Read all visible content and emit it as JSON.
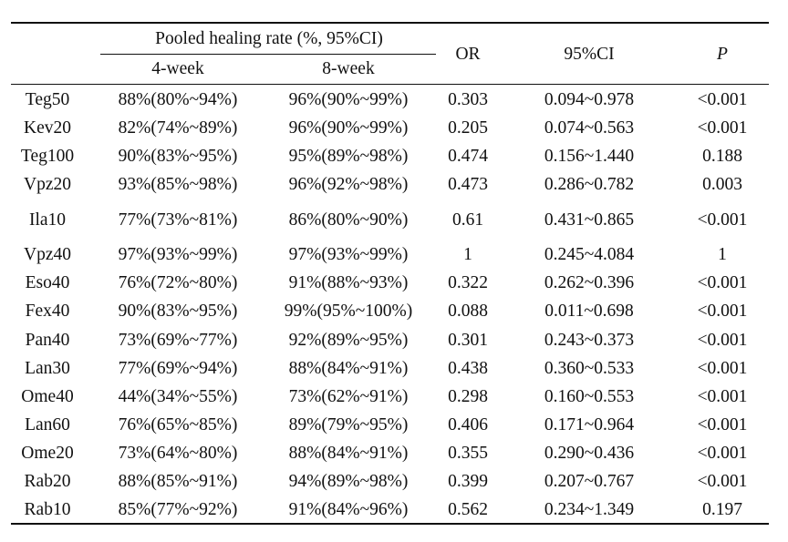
{
  "header": {
    "group_label": "Pooled healing rate (%, 95%CI)",
    "sub_4week": "4-week",
    "sub_8week": "8-week",
    "or_label": "OR",
    "ci_label": "95%CI",
    "p_label": "P"
  },
  "rows": [
    {
      "drug": "Teg50",
      "w4": "88%(80%~94%)",
      "w8": "96%(90%~99%)",
      "or": "0.303",
      "ci": "0.094~0.978",
      "p": "<0.001"
    },
    {
      "drug": "Kev20",
      "w4": "82%(74%~89%)",
      "w8": "96%(90%~99%)",
      "or": "0.205",
      "ci": "0.074~0.563",
      "p": "<0.001"
    },
    {
      "drug": "Teg100",
      "w4": "90%(83%~95%)",
      "w8": "95%(89%~98%)",
      "or": "0.474",
      "ci": "0.156~1.440",
      "p": "0.188"
    },
    {
      "drug": "Vpz20",
      "w4": "93%(85%~98%)",
      "w8": "96%(92%~98%)",
      "or": "0.473",
      "ci": "0.286~0.782",
      "p": "0.003"
    },
    {
      "drug": "Ila10",
      "w4": "77%(73%~81%)",
      "w8": "86%(80%~90%)",
      "or": "0.61",
      "ci": "0.431~0.865",
      "p": "<0.001"
    },
    {
      "drug": "Vpz40",
      "w4": "97%(93%~99%)",
      "w8": "97%(93%~99%)",
      "or": "1",
      "ci": "0.245~4.084",
      "p": "1"
    },
    {
      "drug": "Eso40",
      "w4": "76%(72%~80%)",
      "w8": "91%(88%~93%)",
      "or": "0.322",
      "ci": "0.262~0.396",
      "p": "<0.001"
    },
    {
      "drug": "Fex40",
      "w4": "90%(83%~95%)",
      "w8": "99%(95%~100%)",
      "or": "0.088",
      "ci": "0.011~0.698",
      "p": "<0.001"
    },
    {
      "drug": "Pan40",
      "w4": "73%(69%~77%)",
      "w8": "92%(89%~95%)",
      "or": "0.301",
      "ci": "0.243~0.373",
      "p": "<0.001"
    },
    {
      "drug": "Lan30",
      "w4": "77%(69%~94%)",
      "w8": "88%(84%~91%)",
      "or": "0.438",
      "ci": "0.360~0.533",
      "p": "<0.001"
    },
    {
      "drug": "Ome40",
      "w4": "44%(34%~55%)",
      "w8": "73%(62%~91%)",
      "or": "0.298",
      "ci": "0.160~0.553",
      "p": "<0.001"
    },
    {
      "drug": "Lan60",
      "w4": "76%(65%~85%)",
      "w8": "89%(79%~95%)",
      "or": "0.406",
      "ci": "0.171~0.964",
      "p": "<0.001"
    },
    {
      "drug": "Ome20",
      "w4": "73%(64%~80%)",
      "w8": "88%(84%~91%)",
      "or": "0.355",
      "ci": "0.290~0.436",
      "p": "<0.001"
    },
    {
      "drug": "Rab20",
      "w4": "88%(85%~91%)",
      "w8": "94%(89%~98%)",
      "or": "0.399",
      "ci": "0.207~0.767",
      "p": "<0.001"
    },
    {
      "drug": "Rab10",
      "w4": "85%(77%~92%)",
      "w8": "91%(84%~96%)",
      "or": "0.562",
      "ci": "0.234~1.349",
      "p": "0.197"
    }
  ]
}
